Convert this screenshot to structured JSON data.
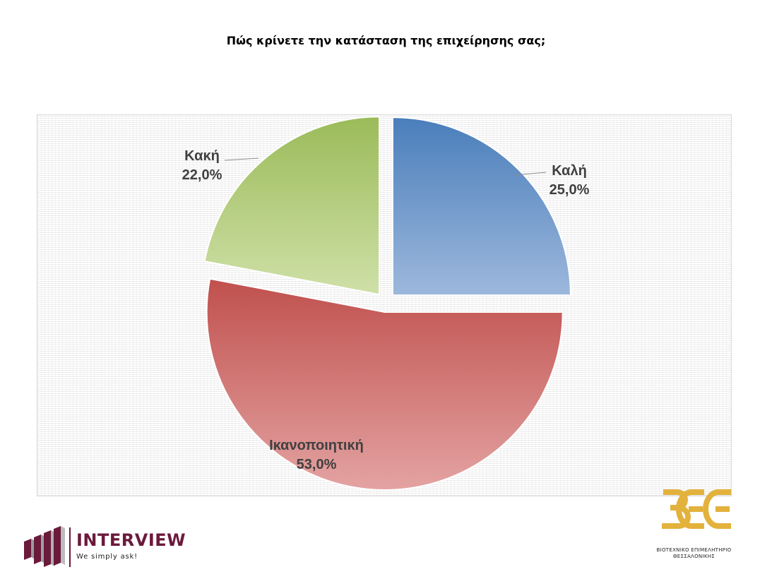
{
  "chart_data": {
    "type": "pie",
    "title": "Πώς κρίνετε την κατάσταση της επιχείρησης σας;",
    "slices": [
      {
        "label": "Καλή",
        "value": 25.0,
        "display": "25,0%",
        "color_top": "#4a7ebb",
        "color_bottom": "#9db8dc"
      },
      {
        "label": "Ικανοποιητική",
        "value": 53.0,
        "display": "53,0%",
        "color_top": "#c0504d",
        "color_bottom": "#e3a3a2"
      },
      {
        "label": "Κακή",
        "value": 22.0,
        "display": "22,0%",
        "color_top": "#9bbb59",
        "color_bottom": "#cfe0a8"
      }
    ],
    "exploded": true,
    "legend": "none",
    "grid": false
  },
  "logos": {
    "left": {
      "name": "INTERVIEW",
      "tagline": "We simply ask!",
      "color": "#6b1a3c"
    },
    "right": {
      "mark": "ΒΕΘ",
      "line1": "ΒΙΟΤΕΧΝΙΚΟ ΕΠΙΜΕΛΗΤΗΡΙΟ",
      "line2": "ΘΕΣΣΑΛΟΝΙΚΗΣ",
      "color": "#e3b23c"
    }
  }
}
